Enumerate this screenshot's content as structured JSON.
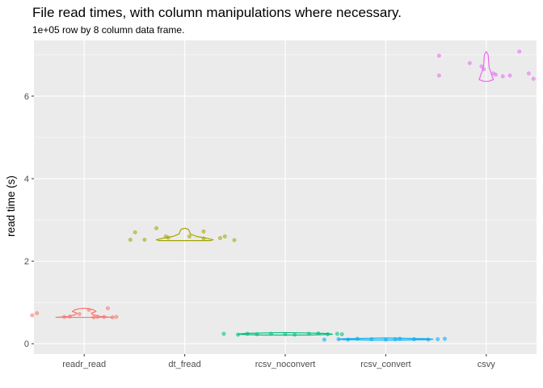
{
  "chart_data": {
    "type": "violin+jitter",
    "title": "File read times, with column manipulations where necessary.",
    "subtitle": "1e+05 row by 8 column data frame.",
    "xlabel": "",
    "ylabel": "read time (s)",
    "ylim": [
      -0.25,
      7.35
    ],
    "yticks": [
      0,
      2,
      4,
      6
    ],
    "grid": true,
    "legend": "none",
    "categories": [
      "readr_read",
      "dt_fread",
      "rcsv_noconvert",
      "rcsv_convert",
      "csvy"
    ],
    "colors": [
      "#F8766D",
      "#A3A500",
      "#00BF7D",
      "#00B0F6",
      "#E76BF3"
    ],
    "series": [
      {
        "points": [
          [
            -1.1,
            0.69
          ],
          [
            -1.0,
            0.74
          ],
          [
            -0.42,
            0.65
          ],
          [
            -0.3,
            0.66
          ],
          [
            -0.1,
            0.72
          ],
          [
            0.1,
            0.82
          ],
          [
            0.28,
            0.65
          ],
          [
            0.42,
            0.65
          ],
          [
            0.6,
            0.64
          ],
          [
            0.68,
            0.65
          ],
          [
            0.5,
            0.86
          ],
          [
            0.2,
            0.64
          ]
        ],
        "violin": [
          [
            0.64,
            0.6
          ],
          [
            0.66,
            0.35
          ],
          [
            0.7,
            0.2
          ],
          [
            0.74,
            0.15
          ],
          [
            0.78,
            0.25
          ],
          [
            0.82,
            0.2
          ],
          [
            0.85,
            0.1
          ],
          [
            0.86,
            0
          ]
        ]
      },
      {
        "points": [
          [
            -1.15,
            2.52
          ],
          [
            -1.05,
            2.7
          ],
          [
            -0.85,
            2.52
          ],
          [
            -0.6,
            2.8
          ],
          [
            -0.4,
            2.6
          ],
          [
            -0.35,
            2.57
          ],
          [
            0.1,
            2.6
          ],
          [
            0.4,
            2.72
          ],
          [
            0.4,
            2.55
          ],
          [
            0.75,
            2.56
          ],
          [
            0.85,
            2.6
          ],
          [
            1.05,
            2.51
          ]
        ],
        "violin": [
          [
            2.5,
            0.55
          ],
          [
            2.52,
            0.6
          ],
          [
            2.56,
            0.45
          ],
          [
            2.6,
            0.25
          ],
          [
            2.66,
            0.12
          ],
          [
            2.72,
            0.1
          ],
          [
            2.77,
            0.08
          ],
          [
            2.8,
            0
          ]
        ]
      },
      {
        "points": [
          [
            -1.3,
            0.24
          ],
          [
            -1.0,
            0.22
          ],
          [
            -0.8,
            0.24
          ],
          [
            -0.6,
            0.23
          ],
          [
            -0.3,
            0.24
          ],
          [
            0.0,
            0.23
          ],
          [
            0.2,
            0.22
          ],
          [
            0.5,
            0.24
          ],
          [
            0.7,
            0.25
          ],
          [
            0.9,
            0.23
          ],
          [
            1.1,
            0.24
          ],
          [
            1.2,
            0.23
          ]
        ],
        "violin": [
          [
            0.21,
            0.45
          ],
          [
            0.22,
            0.8
          ],
          [
            0.23,
            1.0
          ],
          [
            0.24,
            0.95
          ],
          [
            0.25,
            0.85
          ],
          [
            0.26,
            0.5
          ],
          [
            0.27,
            0
          ]
        ]
      },
      {
        "points": [
          [
            -1.3,
            0.1
          ],
          [
            -1.0,
            0.11
          ],
          [
            -0.6,
            0.12
          ],
          [
            -0.3,
            0.11
          ],
          [
            0.0,
            0.1
          ],
          [
            0.3,
            0.12
          ],
          [
            0.6,
            0.11
          ],
          [
            0.9,
            0.1
          ],
          [
            1.1,
            0.11
          ],
          [
            1.25,
            0.12
          ],
          [
            -0.8,
            0.1
          ],
          [
            0.2,
            0.11
          ]
        ],
        "violin": [
          [
            0.09,
            0.35
          ],
          [
            0.1,
            0.9
          ],
          [
            0.11,
            1.0
          ],
          [
            0.12,
            0.9
          ],
          [
            0.13,
            0.5
          ],
          [
            0.14,
            0
          ]
        ]
      },
      {
        "points": [
          [
            -1.0,
            6.98
          ],
          [
            -1.0,
            6.5
          ],
          [
            -0.35,
            6.8
          ],
          [
            -0.1,
            6.72
          ],
          [
            0.2,
            6.52
          ],
          [
            0.35,
            6.48
          ],
          [
            0.7,
            7.08
          ],
          [
            0.9,
            6.55
          ],
          [
            1.0,
            6.42
          ],
          [
            -0.05,
            6.65
          ],
          [
            0.5,
            6.5
          ],
          [
            0.15,
            6.55
          ]
        ],
        "violin": [
          [
            6.36,
            0.05
          ],
          [
            6.4,
            0.15
          ],
          [
            6.5,
            0.12
          ],
          [
            6.6,
            0.09
          ],
          [
            6.7,
            0.06
          ],
          [
            6.85,
            0.05
          ],
          [
            7.0,
            0.04
          ],
          [
            7.08,
            0
          ]
        ]
      }
    ]
  }
}
